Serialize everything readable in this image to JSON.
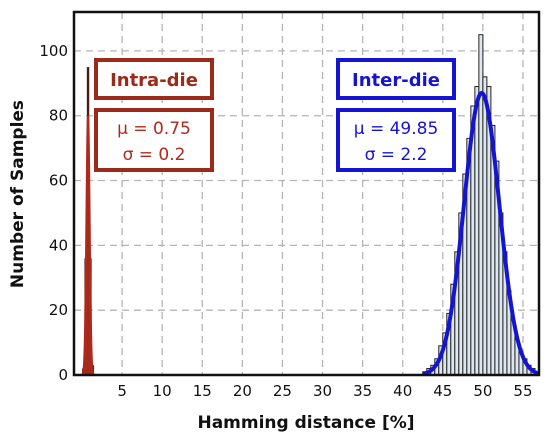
{
  "chart_data": {
    "type": "bar",
    "xlabel": "Hamming distance [%]",
    "ylabel": "Number of Samples",
    "xlim": [
      -1,
      57
    ],
    "ylim": [
      0,
      112
    ],
    "xticks": [
      5,
      10,
      15,
      20,
      25,
      30,
      35,
      40,
      45,
      50,
      55
    ],
    "yticks": [
      0,
      20,
      40,
      60,
      80,
      100
    ],
    "grid": true,
    "colors": {
      "intra": "#b02a1c",
      "inter": "#1414d2",
      "bar_fill": "#dde7f0",
      "bar_edge": "#222222"
    },
    "series": [
      {
        "bin_width": 0.3,
        "x": [
          0.0,
          0.3,
          0.6,
          0.9,
          1.2
        ],
        "values": [
          2,
          36,
          95,
          36,
          3
        ],
        "fit": {
          "mu": 0.75,
          "sigma": 0.2
        }
      },
      {
        "bin_width": 0.5,
        "x": [
          42.5,
          43.0,
          43.5,
          44.0,
          44.5,
          45.0,
          45.5,
          46.0,
          46.5,
          47.0,
          47.5,
          48.0,
          48.5,
          49.0,
          49.5,
          50.0,
          50.5,
          51.0,
          51.5,
          52.0,
          52.5,
          53.0,
          53.5,
          54.0,
          54.5,
          55.0,
          55.5,
          56.0,
          56.5
        ],
        "values": [
          1,
          2,
          3,
          5,
          9,
          13,
          19,
          28,
          38,
          50,
          62,
          73,
          83,
          89,
          105,
          92,
          89,
          77,
          66,
          50,
          38,
          26,
          17,
          11,
          7,
          5,
          3,
          2,
          1
        ],
        "fit": {
          "mu": 49.85,
          "sigma": 2.2
        }
      }
    ],
    "annotations": [
      {
        "title": "Intra-die",
        "mu_text": "μ = 0.75",
        "sigma_text": "σ = 0.2"
      },
      {
        "title": "Inter-die",
        "mu_text": "μ = 49.85",
        "sigma_text": "σ = 2.2"
      }
    ]
  }
}
